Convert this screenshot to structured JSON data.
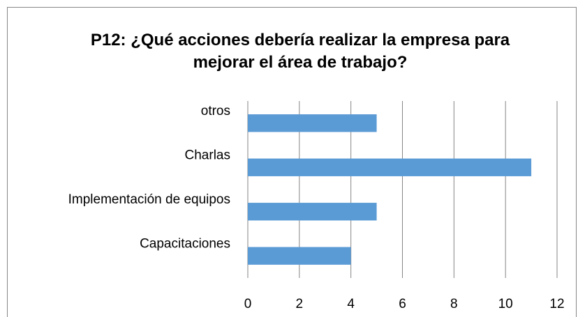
{
  "chart_data": {
    "type": "bar",
    "orientation": "horizontal",
    "title": "P12: ¿Qué acciones debería realizar la empresa para mejorar el área de trabajo?",
    "categories": [
      "Capacitaciones",
      "Implementación de equipos",
      "Charlas",
      "otros"
    ],
    "values": [
      4,
      5,
      11,
      5
    ],
    "color": "#5b9bd5",
    "xlim": [
      0,
      12
    ],
    "xticks": [
      0,
      2,
      4,
      6,
      8,
      10,
      12
    ],
    "grid": true
  }
}
